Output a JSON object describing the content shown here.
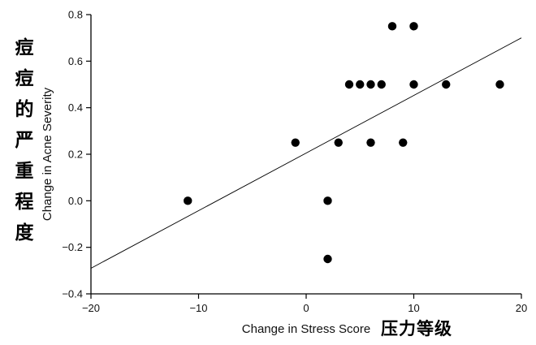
{
  "chart_data": {
    "type": "scatter",
    "xlabel": "Change in Stress Score",
    "ylabel": "Change in Acne Severity",
    "xlabel_cn": "压力等级",
    "ylabel_cn": "痘痘的严重程度",
    "xlim": [
      -20,
      20
    ],
    "ylim": [
      -0.4,
      0.8
    ],
    "xticks": [
      -20,
      -10,
      0,
      10,
      20
    ],
    "yticks": [
      -0.4,
      -0.2,
      0.0,
      0.2,
      0.4,
      0.6,
      0.8
    ],
    "xtick_labels": [
      "−20",
      "−10",
      "0",
      "10",
      "20"
    ],
    "ytick_labels": [
      "−0.4",
      "−0.2",
      "0.0",
      "0.2",
      "0.4",
      "0.6",
      "0.8"
    ],
    "points": [
      {
        "x": -11,
        "y": 0.0
      },
      {
        "x": -1,
        "y": 0.25
      },
      {
        "x": 2,
        "y": 0.0
      },
      {
        "x": 2,
        "y": -0.25
      },
      {
        "x": 3,
        "y": 0.25
      },
      {
        "x": 4,
        "y": 0.5
      },
      {
        "x": 5,
        "y": 0.5
      },
      {
        "x": 6,
        "y": 0.5
      },
      {
        "x": 6,
        "y": 0.25
      },
      {
        "x": 7,
        "y": 0.5
      },
      {
        "x": 8,
        "y": 0.75
      },
      {
        "x": 9,
        "y": 0.25
      },
      {
        "x": 10,
        "y": 0.75
      },
      {
        "x": 10,
        "y": 0.5
      },
      {
        "x": 13,
        "y": 0.5
      },
      {
        "x": 18,
        "y": 0.5
      }
    ],
    "trendline": {
      "x": [
        -20,
        20
      ],
      "y": [
        -0.29,
        0.7
      ]
    },
    "grid": false,
    "marker_color": "#000000"
  }
}
